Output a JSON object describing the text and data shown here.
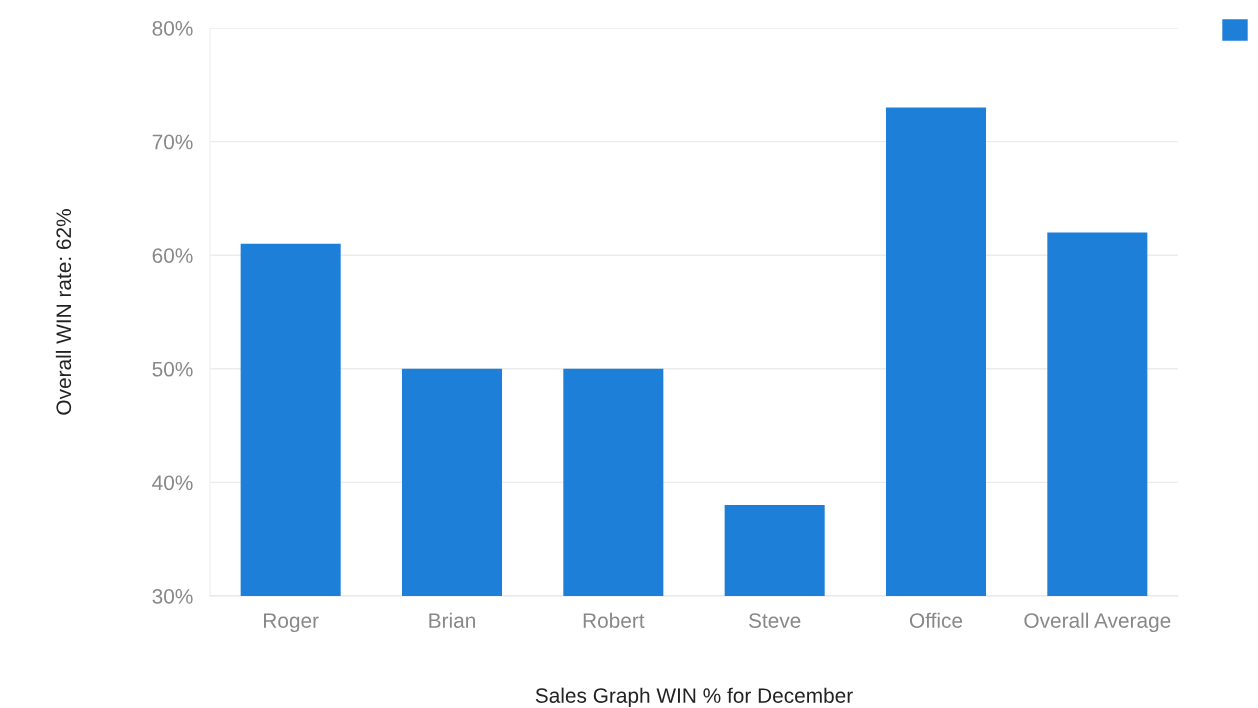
{
  "chart_data": {
    "type": "bar",
    "categories": [
      "Roger",
      "Brian",
      "Robert",
      "Steve",
      "Office",
      "Overall Average"
    ],
    "series": [
      {
        "color": "#1e7fd8",
        "values": [
          61,
          50,
          50,
          38,
          73,
          62
        ]
      }
    ],
    "xlabel": "Sales Graph WIN % for December",
    "ylabel": "Overall WIN rate: 62%",
    "ylim": [
      30,
      80
    ],
    "yticks": [
      {
        "value": 30,
        "label": "30%"
      },
      {
        "value": 40,
        "label": "40%"
      },
      {
        "value": 50,
        "label": "50%"
      },
      {
        "value": 60,
        "label": "60%"
      },
      {
        "value": 70,
        "label": "70%"
      },
      {
        "value": 80,
        "label": "80%"
      }
    ],
    "grid": "y"
  }
}
